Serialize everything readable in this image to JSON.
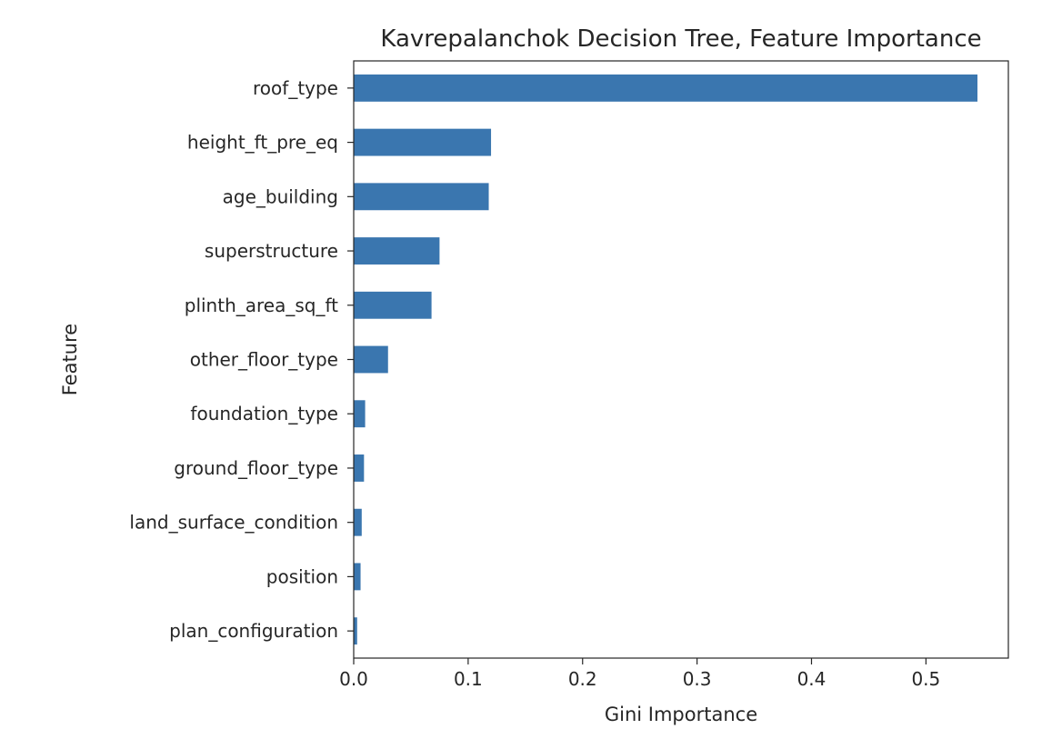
{
  "chart_data": {
    "type": "bar",
    "orientation": "horizontal",
    "title": "Kavrepalanchok Decision Tree, Feature Importance",
    "xlabel": "Gini Importance",
    "ylabel": "Feature",
    "categories": [
      "roof_type",
      "height_ft_pre_eq",
      "age_building",
      "superstructure",
      "plinth_area_sq_ft",
      "other_floor_type",
      "foundation_type",
      "ground_floor_type",
      "land_surface_condition",
      "position",
      "plan_configuration"
    ],
    "values": [
      0.545,
      0.12,
      0.118,
      0.075,
      0.068,
      0.03,
      0.01,
      0.009,
      0.007,
      0.006,
      0.003
    ],
    "xlim": [
      0,
      0.572
    ],
    "xticks": [
      "0.0",
      "0.1",
      "0.2",
      "0.3",
      "0.4",
      "0.5"
    ],
    "grid": false,
    "bar_color": "#3a76af"
  }
}
